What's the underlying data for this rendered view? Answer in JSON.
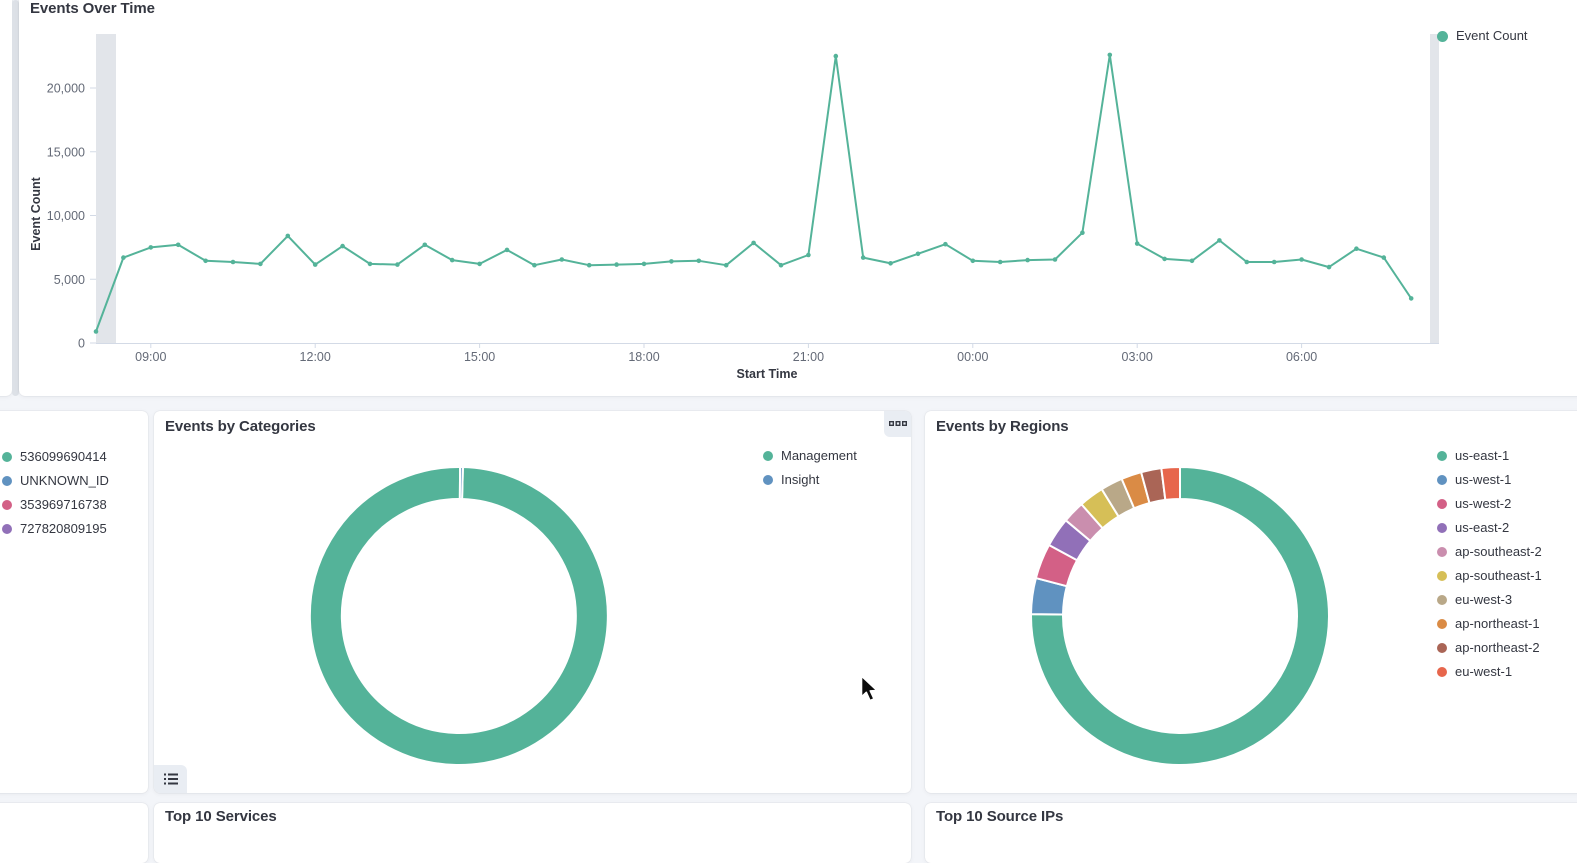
{
  "panels": {
    "events_over_time": {
      "title": "Events Over Time",
      "y_axis_title": "Event Count",
      "x_axis_title": "Start Time",
      "legend": [
        {
          "label": "Event Count",
          "color": "#54B399"
        }
      ]
    },
    "accounts_panel": {
      "legend": [
        {
          "label": "536099690414",
          "color": "#54B399"
        },
        {
          "label": "UNKNOWN_ID",
          "color": "#6092C0"
        },
        {
          "label": "353969716738",
          "color": "#D36086"
        },
        {
          "label": "727820809195",
          "color": "#9170B8"
        }
      ]
    },
    "events_by_categories": {
      "title": "Events by Categories",
      "legend": [
        {
          "label": "Management",
          "color": "#54B399"
        },
        {
          "label": "Insight",
          "color": "#6092C0"
        }
      ]
    },
    "events_by_regions": {
      "title": "Events by Regions",
      "legend": [
        {
          "label": "us-east-1",
          "color": "#54B399"
        },
        {
          "label": "us-west-1",
          "color": "#6092C0"
        },
        {
          "label": "us-west-2",
          "color": "#D36086"
        },
        {
          "label": "us-east-2",
          "color": "#9170B8"
        },
        {
          "label": "ap-southeast-2",
          "color": "#CA8EAE"
        },
        {
          "label": "ap-southeast-1",
          "color": "#D6BF57"
        },
        {
          "label": "eu-west-3",
          "color": "#B9A888"
        },
        {
          "label": "ap-northeast-1",
          "color": "#DA8B45"
        },
        {
          "label": "ap-northeast-2",
          "color": "#AA6556"
        },
        {
          "label": "eu-west-1",
          "color": "#E7664C"
        }
      ]
    },
    "top_services": {
      "title": "Top 10 Services"
    },
    "top_source_ips": {
      "title": "Top 10 Source IPs"
    }
  },
  "chart_data": [
    {
      "id": "events_over_time",
      "type": "line",
      "title": "Events Over Time",
      "xlabel": "Start Time",
      "ylabel": "Event Count",
      "legend_position": "right",
      "grid": false,
      "ylim": [
        0,
        24000
      ],
      "y_ticks": [
        "0",
        "5,000",
        "10,000",
        "15,000",
        "20,000"
      ],
      "y_tick_values": [
        0,
        5000,
        10000,
        15000,
        20000
      ],
      "x_ticks": [
        "09:00",
        "12:00",
        "15:00",
        "18:00",
        "21:00",
        "00:00",
        "03:00",
        "06:00"
      ],
      "x": [
        "08:00",
        "08:30",
        "09:00",
        "09:30",
        "10:00",
        "10:30",
        "11:00",
        "11:30",
        "12:00",
        "12:30",
        "13:00",
        "13:30",
        "14:00",
        "14:30",
        "15:00",
        "15:30",
        "16:00",
        "16:30",
        "17:00",
        "17:30",
        "18:00",
        "18:30",
        "19:00",
        "19:30",
        "20:00",
        "20:30",
        "21:00",
        "21:30",
        "22:00",
        "22:30",
        "23:00",
        "23:30",
        "00:00",
        "00:30",
        "01:00",
        "01:30",
        "02:00",
        "02:30",
        "03:00",
        "03:30",
        "04:00",
        "04:30",
        "05:00",
        "05:30",
        "06:00",
        "06:30",
        "07:00",
        "07:30",
        "08:00"
      ],
      "series": [
        {
          "name": "Event Count",
          "color": "#54B399",
          "values": [
            900,
            6700,
            7500,
            7700,
            6450,
            6350,
            6200,
            8400,
            6150,
            7600,
            6200,
            6150,
            7700,
            6500,
            6200,
            7300,
            6100,
            6550,
            6100,
            6150,
            6200,
            6400,
            6450,
            6100,
            7850,
            6100,
            6900,
            22500,
            6700,
            6250,
            7000,
            7750,
            6450,
            6350,
            6500,
            6550,
            8650,
            22600,
            7800,
            6600,
            6450,
            8050,
            6350,
            6350,
            6550,
            5950,
            7400,
            6700,
            3500
          ]
        }
      ]
    },
    {
      "id": "events_by_categories",
      "type": "pie",
      "title": "Events by Categories",
      "labels": [
        "Management",
        "Insight"
      ],
      "values_percent": [
        99.7,
        0.3
      ],
      "colors": [
        "#54B399",
        "#6092C0"
      ],
      "legend_position": "right"
    },
    {
      "id": "events_by_regions",
      "type": "pie",
      "title": "Events by Regions",
      "labels": [
        "us-east-1",
        "us-west-1",
        "us-west-2",
        "us-east-2",
        "ap-southeast-2",
        "ap-southeast-1",
        "eu-west-3",
        "ap-northeast-1",
        "ap-northeast-2",
        "eu-west-1"
      ],
      "values_percent": [
        75.2,
        3.9,
        3.8,
        3.2,
        2.4,
        2.7,
        2.4,
        2.2,
        2.2,
        2.0
      ],
      "colors": [
        "#54B399",
        "#6092C0",
        "#D36086",
        "#9170B8",
        "#CA8EAE",
        "#D6BF57",
        "#B9A888",
        "#DA8B45",
        "#AA6556",
        "#E7664C"
      ],
      "legend_position": "right"
    }
  ]
}
